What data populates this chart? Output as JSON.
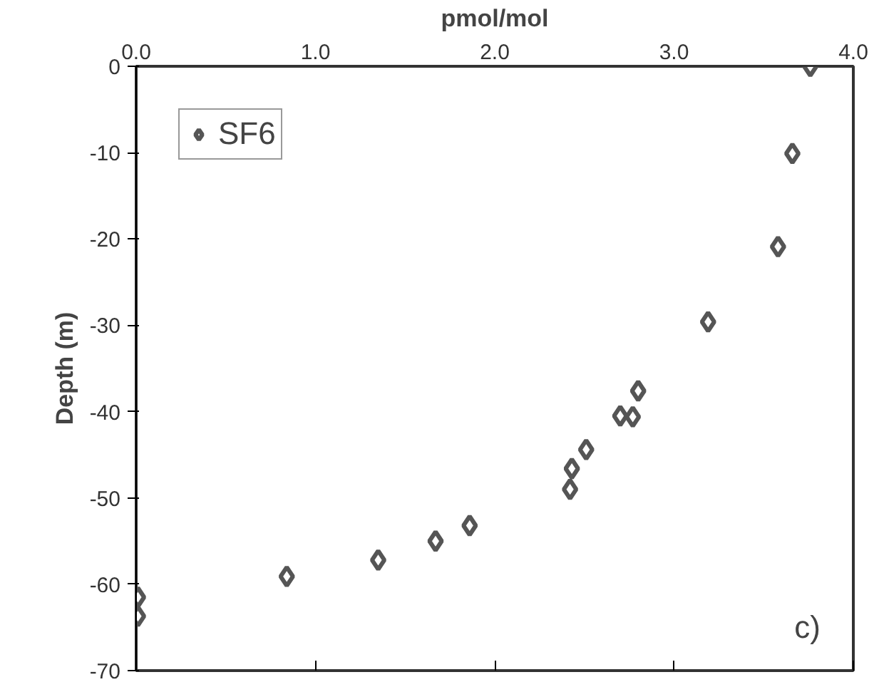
{
  "chart_data": {
    "type": "scatter",
    "xlabel": "pmol/mol",
    "ylabel": "Depth (m)",
    "xlim": [
      0,
      4
    ],
    "xticks": [
      {
        "value": 0,
        "label": "0.0"
      },
      {
        "value": 1,
        "label": "1.0"
      },
      {
        "value": 2,
        "label": "2.0"
      },
      {
        "value": 3,
        "label": "3.0"
      },
      {
        "value": 4,
        "label": "4.0"
      }
    ],
    "ylim": [
      -70,
      0
    ],
    "yticks": [
      0,
      -10,
      -20,
      -30,
      -40,
      -50,
      -60,
      -70
    ],
    "grid": false,
    "legend": "top left",
    "marker": "diamond",
    "series": [
      {
        "name": "SF6",
        "color": "#555555",
        "x": [
          3.76,
          3.66,
          3.58,
          3.19,
          2.8,
          2.7,
          2.77,
          2.51,
          2.43,
          2.42,
          1.86,
          1.67,
          1.35,
          0.84,
          0.01,
          0.01
        ],
        "values": [
          0,
          -10.1,
          -20.9,
          -29.6,
          -37.6,
          -40.5,
          -40.6,
          -44.4,
          -46.6,
          -49.0,
          -53.2,
          -55.0,
          -57.2,
          -59.1,
          -61.5,
          -63.7
        ]
      }
    ],
    "annotations": [
      "c)"
    ]
  }
}
